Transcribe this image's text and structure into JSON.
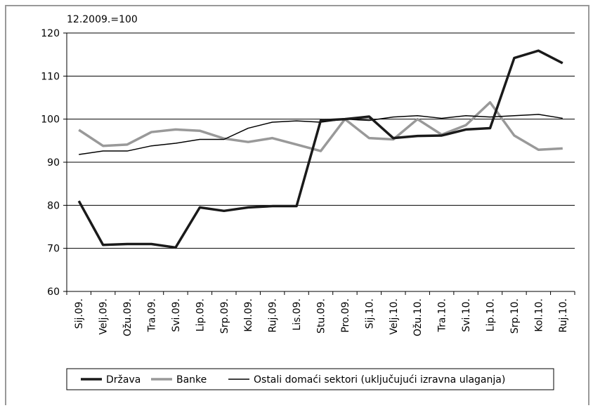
{
  "chart_data": {
    "type": "line",
    "annotation": "12.2009.=100",
    "categories": [
      "Sij.09.",
      "Velj.09.",
      "Ožu.09.",
      "Tra.09.",
      "Svi.09.",
      "Lip.09.",
      "Srp.09.",
      "Kol.09.",
      "Ruj.09.",
      "Lis.09.",
      "Stu.09.",
      "Pro.09.",
      "Sij.10.",
      "Velj.10.",
      "Ožu.10.",
      "Tra.10.",
      "Svi.10.",
      "Lip.10.",
      "Srp.10.",
      "Kol.10.",
      "Ruj.10."
    ],
    "series": [
      {
        "name": "Država",
        "color": "#1a1a1a",
        "width": 3.5,
        "values": [
          81,
          70.8,
          71,
          71,
          70.2,
          79.5,
          78.7,
          79.5,
          79.8,
          79.8,
          99.7,
          100,
          100.6,
          95.6,
          96.1,
          96.2,
          97.6,
          97.9,
          114.2,
          115.9,
          113
        ]
      },
      {
        "name": "Banke",
        "color": "#999999",
        "width": 3.5,
        "values": [
          97.5,
          93.8,
          94.1,
          97,
          97.6,
          97.3,
          95.5,
          94.7,
          95.6,
          94.1,
          92.6,
          100,
          95.6,
          95.3,
          100,
          96.4,
          98.6,
          103.9,
          96.2,
          92.9,
          93.2
        ]
      },
      {
        "name": "Ostali domaći sektori (uključujući izravna ulaganja)",
        "color": "#000000",
        "width": 1.5,
        "values": [
          91.8,
          92.6,
          92.6,
          93.8,
          94.4,
          95.3,
          95.3,
          97.9,
          99.3,
          99.6,
          99.3,
          100,
          99.7,
          100.5,
          100.8,
          100.2,
          100.8,
          100.5,
          100.8,
          101.1,
          100.2
        ]
      }
    ],
    "ylim": [
      60,
      120
    ],
    "yticks": [
      60,
      70,
      80,
      90,
      100,
      110,
      120
    ],
    "grid": true
  }
}
